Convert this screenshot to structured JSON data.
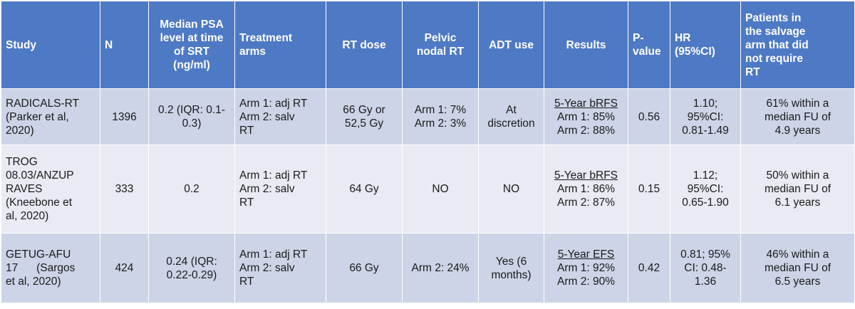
{
  "table": {
    "headers": [
      {
        "key": "study",
        "lines": [
          "Study"
        ]
      },
      {
        "key": "n",
        "lines": [
          "N"
        ]
      },
      {
        "key": "psa",
        "lines": [
          "Median PSA",
          "level at time",
          "of SRT",
          "(ng/ml)"
        ]
      },
      {
        "key": "arms",
        "lines": [
          "Treatment",
          "arms"
        ]
      },
      {
        "key": "dose",
        "lines": [
          "RT dose"
        ]
      },
      {
        "key": "pelvic",
        "lines": [
          "Pelvic",
          "nodal RT"
        ]
      },
      {
        "key": "adt",
        "lines": [
          "ADT use"
        ]
      },
      {
        "key": "results",
        "lines": [
          "Results"
        ]
      },
      {
        "key": "pvalue",
        "lines": [
          "P-",
          "value"
        ]
      },
      {
        "key": "hr",
        "lines": [
          "HR",
          "(95%CI)"
        ]
      },
      {
        "key": "salvage",
        "lines": [
          "Patients in",
          "the salvage",
          "arm that did",
          "not require",
          "RT"
        ]
      }
    ],
    "rows": [
      {
        "study": [
          "RADICALS-RT",
          "(Parker et al,",
          "2020)"
        ],
        "n": [
          "1396"
        ],
        "psa": [
          "0.2 (IQR: 0.1-",
          "0.3)"
        ],
        "arms": [
          "Arm 1: adj RT",
          "Arm 2: salv",
          "RT"
        ],
        "dose": [
          "66 Gy or",
          "52,5 Gy"
        ],
        "pelvic": [
          "Arm 1: 7%",
          "Arm 2: 3%"
        ],
        "adt": [
          "At",
          "discretion"
        ],
        "results_title": "5-Year bRFS",
        "results": [
          "Arm 1: 85%",
          "Arm 2: 88%"
        ],
        "pvalue": [
          "0.56"
        ],
        "hr": [
          "1.10;",
          "95%CI:",
          "0.81-1.49"
        ],
        "salvage": [
          "61% within a",
          "median FU of",
          "4.9 years"
        ]
      },
      {
        "study": [
          "TROG",
          "08.03/ANZUP",
          "RAVES",
          "(Kneebone et",
          "al, 2020)"
        ],
        "n": [
          "333"
        ],
        "psa": [
          "0.2"
        ],
        "arms": [
          "Arm 1: adj RT",
          "Arm 2: salv",
          "RT"
        ],
        "dose": [
          "64 Gy"
        ],
        "pelvic": [
          "NO"
        ],
        "adt": [
          "NO"
        ],
        "results_title": "5-Year bRFS",
        "results": [
          "Arm 1: 86%",
          "Arm 2: 87%"
        ],
        "pvalue": [
          "0.15"
        ],
        "hr": [
          "1.12;",
          "95%CI:",
          "0.65-1.90"
        ],
        "salvage": [
          "50% within a",
          "median FU of",
          "6.1 years"
        ]
      },
      {
        "study": [
          "GETUG-AFU",
          "17      (Sargos",
          "et al, 2020)"
        ],
        "n": [
          "424"
        ],
        "psa": [
          "0.24 (IQR:",
          "0.22-0.29)"
        ],
        "arms": [
          "Arm 1: adj RT",
          "Arm 2: salv",
          "RT"
        ],
        "dose": [
          "66 Gy"
        ],
        "pelvic": [
          "Arm 2: 24%"
        ],
        "adt": [
          "Yes (6",
          "months)"
        ],
        "results_title": "5-Year EFS",
        "results": [
          "Arm 1: 92%",
          "Arm 2: 90%"
        ],
        "pvalue": [
          "0.42"
        ],
        "hr": [
          "0.81; 95%",
          "CI: 0.48-",
          "1.36"
        ],
        "salvage": [
          "46% within a",
          "median FU of",
          "6.5 years"
        ]
      }
    ]
  }
}
